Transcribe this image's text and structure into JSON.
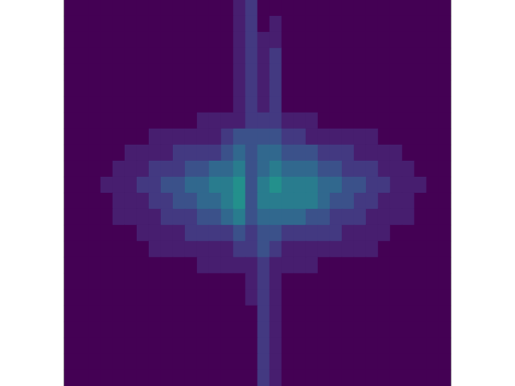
{
  "chart_data": {
    "type": "heatmap",
    "tick_labels": false,
    "grid": false,
    "color_range": [
      0,
      12
    ],
    "cells": [
      [
        0,
        0,
        0,
        0,
        0,
        0,
        0,
        0,
        0,
        0,
        0,
        0,
        0,
        0,
        1,
        2,
        0,
        0,
        0,
        0,
        0,
        0,
        0,
        0,
        0,
        0,
        0,
        0,
        0,
        0,
        0,
        0
      ],
      [
        0,
        0,
        0,
        0,
        0,
        0,
        0,
        0,
        0,
        0,
        0,
        0,
        0,
        0,
        1,
        2,
        0,
        1,
        0,
        0,
        0,
        0,
        0,
        0,
        0,
        0,
        0,
        0,
        0,
        0,
        0,
        0
      ],
      [
        0,
        0,
        0,
        0,
        0,
        0,
        0,
        0,
        0,
        0,
        0,
        0,
        0,
        0,
        1,
        2,
        1,
        1,
        0,
        0,
        0,
        0,
        0,
        0,
        0,
        0,
        0,
        0,
        0,
        0,
        0,
        0
      ],
      [
        0,
        0,
        0,
        0,
        0,
        0,
        0,
        0,
        0,
        0,
        0,
        0,
        0,
        0,
        1,
        2,
        1,
        2,
        0,
        0,
        0,
        0,
        0,
        0,
        0,
        0,
        0,
        0,
        0,
        0,
        0,
        0
      ],
      [
        0,
        0,
        0,
        0,
        0,
        0,
        0,
        0,
        0,
        0,
        0,
        0,
        0,
        0,
        1,
        2,
        1,
        2,
        0,
        0,
        0,
        0,
        0,
        0,
        0,
        0,
        0,
        0,
        0,
        0,
        0,
        0
      ],
      [
        0,
        0,
        0,
        0,
        0,
        0,
        0,
        0,
        0,
        0,
        0,
        0,
        0,
        0,
        1,
        2,
        1,
        2,
        0,
        0,
        0,
        0,
        0,
        0,
        0,
        0,
        0,
        0,
        0,
        0,
        0,
        0
      ],
      [
        0,
        0,
        0,
        0,
        0,
        0,
        0,
        0,
        0,
        0,
        0,
        0,
        0,
        0,
        1,
        2,
        1,
        2,
        0,
        0,
        0,
        0,
        0,
        0,
        0,
        0,
        0,
        0,
        0,
        0,
        0,
        0
      ],
      [
        0,
        0,
        0,
        0,
        0,
        0,
        0,
        0,
        0,
        0,
        0,
        1,
        1,
        1,
        1,
        2,
        2,
        2,
        1,
        1,
        1,
        0,
        0,
        0,
        0,
        0,
        0,
        0,
        0,
        0,
        0,
        0
      ],
      [
        0,
        0,
        0,
        0,
        0,
        0,
        0,
        1,
        1,
        1,
        1,
        1,
        1,
        2,
        3,
        3,
        3,
        3,
        2,
        2,
        1,
        1,
        1,
        1,
        1,
        1,
        0,
        0,
        0,
        0,
        0,
        0
      ],
      [
        0,
        0,
        0,
        0,
        0,
        1,
        1,
        1,
        1,
        2,
        2,
        2,
        2,
        3,
        4,
        3,
        4,
        4,
        3,
        3,
        3,
        2,
        2,
        2,
        1,
        1,
        1,
        1,
        0,
        0,
        0,
        0
      ],
      [
        0,
        0,
        0,
        0,
        1,
        1,
        1,
        2,
        2,
        2,
        3,
        3,
        4,
        4,
        5,
        3,
        4,
        5,
        4,
        4,
        4,
        3,
        3,
        2,
        2,
        2,
        1,
        1,
        1,
        0,
        0,
        0
      ],
      [
        0,
        0,
        0,
        1,
        1,
        1,
        2,
        2,
        3,
        3,
        4,
        4,
        5,
        5,
        6,
        3,
        5,
        6,
        5,
        5,
        5,
        4,
        4,
        3,
        3,
        2,
        2,
        1,
        1,
        1,
        0,
        0
      ],
      [
        0,
        0,
        0,
        0,
        1,
        1,
        1,
        2,
        2,
        3,
        3,
        4,
        4,
        5,
        6,
        3,
        5,
        5,
        5,
        5,
        5,
        4,
        3,
        3,
        2,
        2,
        1,
        1,
        1,
        0,
        0,
        0
      ],
      [
        0,
        0,
        0,
        0,
        1,
        1,
        1,
        1,
        2,
        2,
        2,
        3,
        3,
        4,
        5,
        3,
        4,
        4,
        4,
        4,
        3,
        3,
        2,
        2,
        2,
        1,
        1,
        1,
        1,
        0,
        0,
        0
      ],
      [
        0,
        0,
        0,
        0,
        0,
        0,
        1,
        1,
        1,
        1,
        2,
        2,
        2,
        2,
        3,
        2,
        3,
        3,
        2,
        2,
        2,
        2,
        2,
        1,
        1,
        1,
        1,
        0,
        0,
        0,
        0,
        0
      ],
      [
        0,
        0,
        0,
        0,
        0,
        0,
        0,
        1,
        1,
        1,
        1,
        1,
        1,
        1,
        2,
        2,
        3,
        2,
        1,
        1,
        1,
        1,
        1,
        1,
        1,
        1,
        0,
        0,
        0,
        0,
        0,
        0
      ],
      [
        0,
        0,
        0,
        0,
        0,
        0,
        0,
        0,
        0,
        0,
        0,
        1,
        1,
        1,
        1,
        1,
        2,
        1,
        1,
        1,
        1,
        0,
        0,
        0,
        0,
        0,
        0,
        0,
        0,
        0,
        0,
        0
      ],
      [
        0,
        0,
        0,
        0,
        0,
        0,
        0,
        0,
        0,
        0,
        0,
        0,
        0,
        0,
        0,
        1,
        2,
        1,
        0,
        0,
        0,
        0,
        0,
        0,
        0,
        0,
        0,
        0,
        0,
        0,
        0,
        0
      ],
      [
        0,
        0,
        0,
        0,
        0,
        0,
        0,
        0,
        0,
        0,
        0,
        0,
        0,
        0,
        0,
        1,
        2,
        1,
        0,
        0,
        0,
        0,
        0,
        0,
        0,
        0,
        0,
        0,
        0,
        0,
        0,
        0
      ],
      [
        0,
        0,
        0,
        0,
        0,
        0,
        0,
        0,
        0,
        0,
        0,
        0,
        0,
        0,
        0,
        0,
        2,
        1,
        0,
        0,
        0,
        0,
        0,
        0,
        0,
        0,
        0,
        0,
        0,
        0,
        0,
        0
      ],
      [
        0,
        0,
        0,
        0,
        0,
        0,
        0,
        0,
        0,
        0,
        0,
        0,
        0,
        0,
        0,
        0,
        2,
        1,
        0,
        0,
        0,
        0,
        0,
        0,
        0,
        0,
        0,
        0,
        0,
        0,
        0,
        0
      ],
      [
        0,
        0,
        0,
        0,
        0,
        0,
        0,
        0,
        0,
        0,
        0,
        0,
        0,
        0,
        0,
        0,
        2,
        1,
        0,
        0,
        0,
        0,
        0,
        0,
        0,
        0,
        0,
        0,
        0,
        0,
        0,
        0
      ],
      [
        0,
        0,
        0,
        0,
        0,
        0,
        0,
        0,
        0,
        0,
        0,
        0,
        0,
        0,
        0,
        0,
        2,
        1,
        0,
        0,
        0,
        0,
        0,
        0,
        0,
        0,
        0,
        0,
        0,
        0,
        0,
        0
      ],
      [
        0,
        0,
        0,
        0,
        0,
        0,
        0,
        0,
        0,
        0,
        0,
        0,
        0,
        0,
        0,
        0,
        2,
        1,
        0,
        0,
        0,
        0,
        0,
        0,
        0,
        0,
        0,
        0,
        0,
        0,
        0,
        0
      ]
    ]
  }
}
